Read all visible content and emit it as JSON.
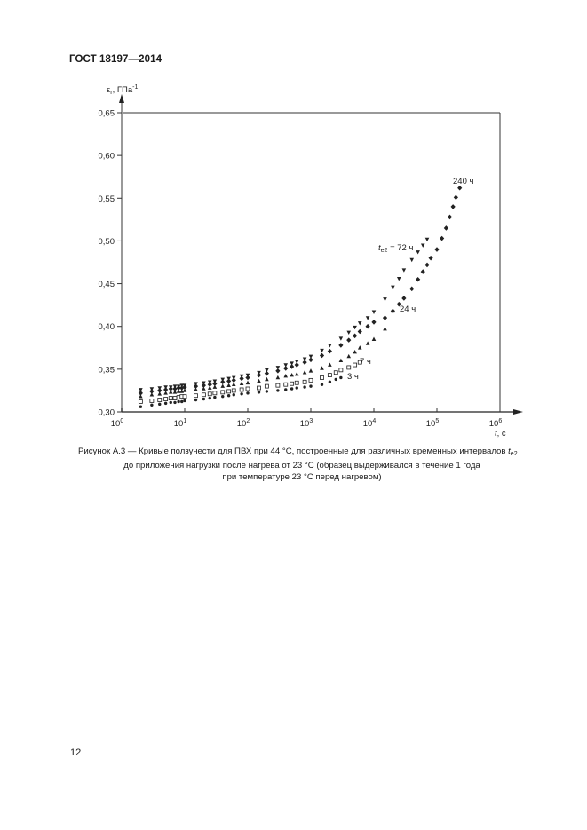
{
  "document": {
    "header": "ГОСТ 18197—2014",
    "page_number": "12"
  },
  "figure": {
    "caption_line1_prefix": "Рисунок А.3 —  Кривые ползучести для ПВХ при 44 °С, построенные для различных временных интервалов ",
    "caption_line1_symbol": "t",
    "caption_line1_sub": "e2",
    "caption_line2": "до приложения нагрузки после нагрева от 23 °С  (образец выдерживался в течение 1 года",
    "caption_line3": "при температуре 23 °С перед нагревом)"
  },
  "chart_data": {
    "type": "scatter",
    "title": "",
    "xlabel": "t, c",
    "ylabel": "εr, ГПа⁻¹",
    "xscale": "log",
    "xlim": [
      1,
      1000000
    ],
    "ylim": [
      0.3,
      0.65
    ],
    "x_ticks": [
      "10^0",
      "10^1",
      "10^2",
      "10^3",
      "10^4",
      "10^5",
      "10^6"
    ],
    "y_ticks": [
      "0,30",
      "0,35",
      "0,40",
      "0,45",
      "0,50",
      "0,55",
      "0,60",
      "0,65"
    ],
    "grid": false,
    "legend": "inline annotations",
    "series": [
      {
        "name": "3 ч",
        "marker": "small filled circle",
        "x": [
          2,
          3,
          4,
          5,
          6,
          7,
          8,
          9,
          10,
          15,
          20,
          25,
          30,
          40,
          50,
          60,
          80,
          100,
          150,
          200,
          300,
          400,
          500,
          600,
          800,
          1000,
          1500,
          2000,
          2500,
          3000
        ],
        "y": [
          0.306,
          0.308,
          0.309,
          0.31,
          0.311,
          0.311,
          0.312,
          0.312,
          0.313,
          0.314,
          0.315,
          0.316,
          0.317,
          0.318,
          0.319,
          0.32,
          0.321,
          0.322,
          0.323,
          0.324,
          0.325,
          0.326,
          0.327,
          0.328,
          0.329,
          0.33,
          0.332,
          0.335,
          0.338,
          0.34
        ]
      },
      {
        "name": "7 ч",
        "marker": "open square",
        "x": [
          2,
          3,
          4,
          5,
          6,
          7,
          8,
          9,
          10,
          15,
          20,
          25,
          30,
          40,
          50,
          60,
          80,
          100,
          150,
          200,
          300,
          400,
          500,
          600,
          800,
          1000,
          1500,
          2000,
          2500,
          3000,
          4000,
          5000,
          6000
        ],
        "y": [
          0.312,
          0.313,
          0.314,
          0.315,
          0.316,
          0.316,
          0.317,
          0.318,
          0.318,
          0.319,
          0.32,
          0.321,
          0.322,
          0.323,
          0.324,
          0.325,
          0.326,
          0.327,
          0.328,
          0.33,
          0.331,
          0.332,
          0.333,
          0.334,
          0.335,
          0.337,
          0.34,
          0.343,
          0.346,
          0.349,
          0.352,
          0.355,
          0.358
        ]
      },
      {
        "name": "24 ч",
        "marker": "filled triangle up",
        "x": [
          2,
          3,
          4,
          5,
          6,
          7,
          8,
          9,
          10,
          15,
          20,
          25,
          30,
          40,
          50,
          60,
          80,
          100,
          150,
          200,
          300,
          400,
          500,
          600,
          800,
          1000,
          1500,
          2000,
          3000,
          4000,
          5000,
          6000,
          8000,
          10000,
          15000,
          20000
        ],
        "y": [
          0.318,
          0.32,
          0.321,
          0.322,
          0.323,
          0.323,
          0.324,
          0.324,
          0.325,
          0.326,
          0.327,
          0.328,
          0.329,
          0.33,
          0.331,
          0.332,
          0.333,
          0.334,
          0.336,
          0.338,
          0.34,
          0.342,
          0.343,
          0.344,
          0.346,
          0.348,
          0.351,
          0.355,
          0.36,
          0.365,
          0.37,
          0.375,
          0.38,
          0.385,
          0.397,
          0.418
        ]
      },
      {
        "name": "t_e2 = 72 ч",
        "marker": "filled triangle down",
        "x": [
          2,
          3,
          4,
          5,
          6,
          7,
          8,
          9,
          10,
          15,
          20,
          25,
          30,
          40,
          50,
          60,
          80,
          100,
          150,
          200,
          300,
          400,
          500,
          600,
          800,
          1000,
          1500,
          2000,
          3000,
          4000,
          5000,
          6000,
          8000,
          10000,
          15000,
          20000,
          25000,
          30000,
          40000,
          50000,
          60000,
          70000
        ],
        "y": [
          0.326,
          0.327,
          0.328,
          0.329,
          0.329,
          0.33,
          0.33,
          0.331,
          0.331,
          0.333,
          0.334,
          0.335,
          0.336,
          0.338,
          0.339,
          0.34,
          0.342,
          0.343,
          0.346,
          0.349,
          0.352,
          0.355,
          0.357,
          0.359,
          0.362,
          0.365,
          0.372,
          0.378,
          0.386,
          0.393,
          0.399,
          0.404,
          0.41,
          0.417,
          0.432,
          0.446,
          0.456,
          0.466,
          0.478,
          0.487,
          0.495,
          0.502
        ]
      },
      {
        "name": "240 ч",
        "marker": "filled diamond/circle",
        "x": [
          2,
          3,
          4,
          5,
          6,
          7,
          8,
          9,
          10,
          15,
          20,
          25,
          30,
          40,
          50,
          60,
          80,
          100,
          150,
          200,
          300,
          400,
          500,
          600,
          800,
          1000,
          1500,
          2000,
          3000,
          4000,
          5000,
          6000,
          8000,
          10000,
          15000,
          20000,
          25000,
          30000,
          40000,
          50000,
          60000,
          70000,
          80000,
          100000,
          120000,
          140000,
          160000,
          180000,
          200000,
          230000
        ],
        "y": [
          0.322,
          0.324,
          0.325,
          0.326,
          0.327,
          0.327,
          0.328,
          0.328,
          0.329,
          0.33,
          0.331,
          0.332,
          0.333,
          0.335,
          0.336,
          0.337,
          0.339,
          0.34,
          0.343,
          0.345,
          0.348,
          0.351,
          0.353,
          0.355,
          0.358,
          0.361,
          0.366,
          0.371,
          0.378,
          0.384,
          0.389,
          0.394,
          0.4,
          0.405,
          0.41,
          0.418,
          0.426,
          0.433,
          0.444,
          0.455,
          0.464,
          0.472,
          0.48,
          0.49,
          0.503,
          0.515,
          0.528,
          0.54,
          0.551,
          0.562
        ]
      }
    ],
    "annotations": [
      {
        "text": "3 ч",
        "near_series": "3 ч"
      },
      {
        "text": "7 ч",
        "near_series": "7 ч"
      },
      {
        "text": "24 ч",
        "near_series": "24 ч"
      },
      {
        "text": "t_e2 = 72 ч",
        "near_series": "t_e2 = 72 ч"
      },
      {
        "text": "240 ч",
        "near_series": "240 ч"
      }
    ]
  },
  "labels": {
    "y_axis_symbol": "ε",
    "y_axis_sub": "r",
    "y_axis_unit": ", ГПа",
    "y_axis_sup": "-1",
    "x_axis_symbol": "t",
    "x_axis_unit": ", с",
    "ann_3h": "3 ч",
    "ann_7h": "7 ч",
    "ann_24h": "24 ч",
    "ann_72h_sym": "t",
    "ann_72h_sub": "e2",
    "ann_72h_rest": " = 72 ч",
    "ann_240h": "240 ч",
    "y_ticks": [
      "0,30",
      "0,35",
      "0,40",
      "0,45",
      "0,50",
      "0,55",
      "0,60",
      "0,65"
    ],
    "x_ticks_base": "10",
    "x_ticks_exp": [
      "0",
      "1",
      "2",
      "3",
      "4",
      "5",
      "6"
    ]
  }
}
